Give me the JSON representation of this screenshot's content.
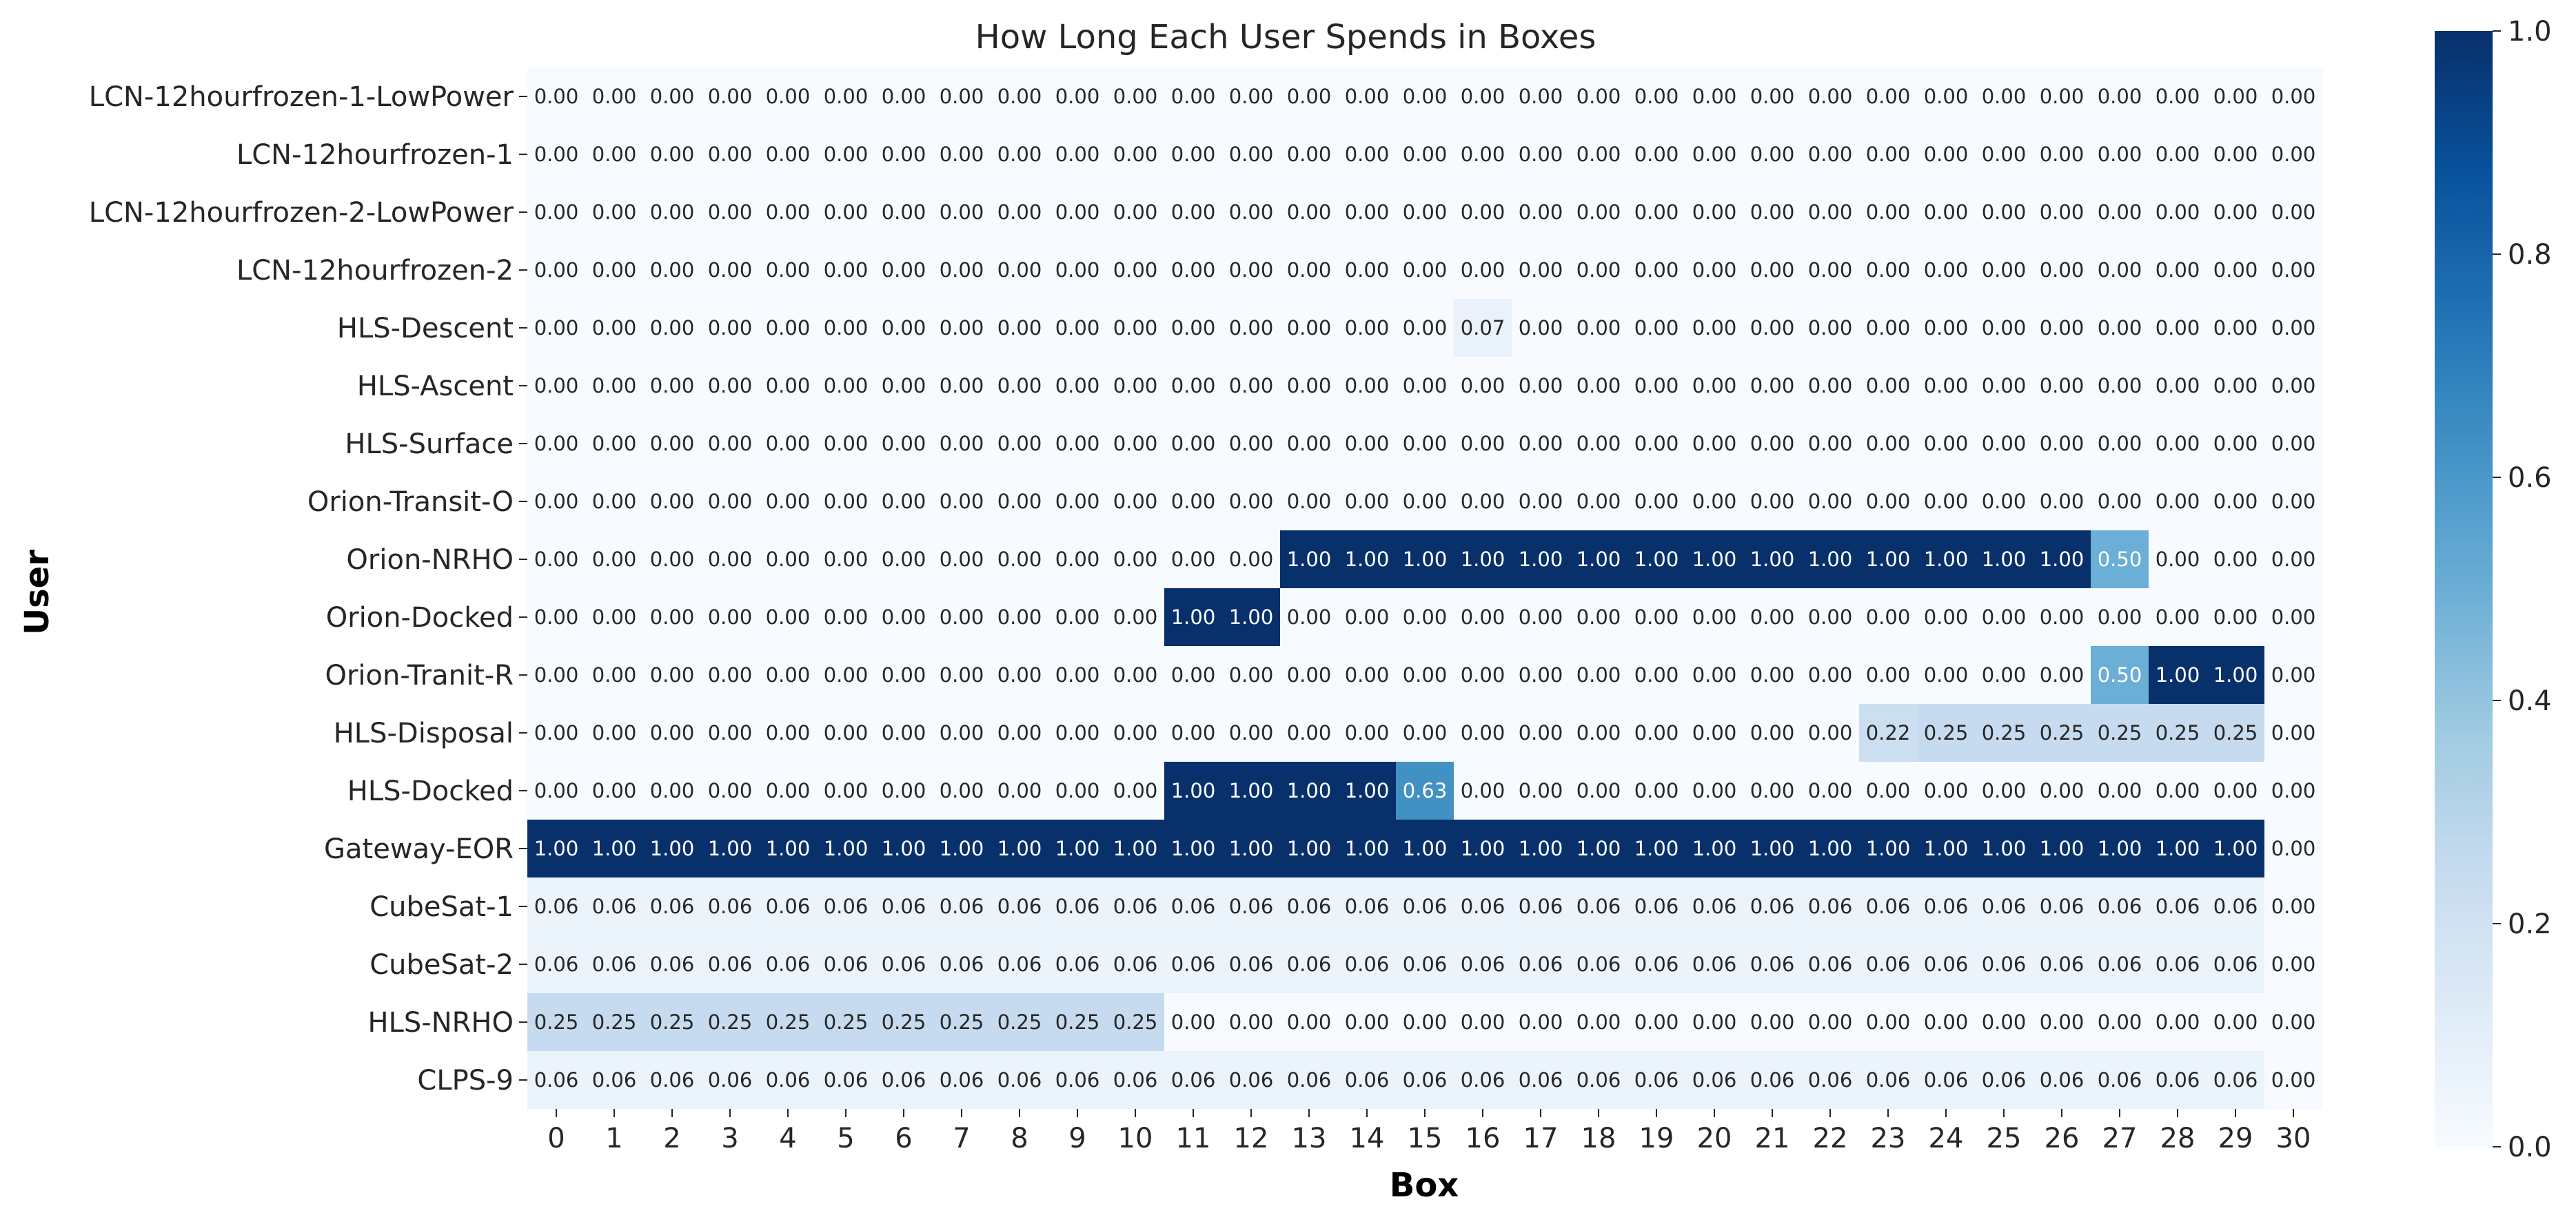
{
  "chart_data": {
    "type": "heatmap",
    "title": "How Long Each User Spends in Boxes",
    "xlabel": "Box",
    "ylabel": "User",
    "x": [
      0,
      1,
      2,
      3,
      4,
      5,
      6,
      7,
      8,
      9,
      10,
      11,
      12,
      13,
      14,
      15,
      16,
      17,
      18,
      19,
      20,
      21,
      22,
      23,
      24,
      25,
      26,
      27,
      28,
      29,
      30
    ],
    "y": [
      "LCN-12hourfrozen-1-LowPower",
      "LCN-12hourfrozen-1",
      "LCN-12hourfrozen-2-LowPower",
      "LCN-12hourfrozen-2",
      "HLS-Descent",
      "HLS-Ascent",
      "HLS-Surface",
      "Orion-Transit-O",
      "Orion-NRHO",
      "Orion-Docked",
      "Orion-Tranit-R",
      "HLS-Disposal",
      "HLS-Docked",
      "Gateway-EOR",
      "CubeSat-1",
      "CubeSat-2",
      "HLS-NRHO",
      "CLPS-9"
    ],
    "values": [
      [
        0,
        0,
        0,
        0,
        0,
        0,
        0,
        0,
        0,
        0,
        0,
        0,
        0,
        0,
        0,
        0,
        0,
        0,
        0,
        0,
        0,
        0,
        0,
        0,
        0,
        0,
        0,
        0,
        0,
        0,
        0
      ],
      [
        0,
        0,
        0,
        0,
        0,
        0,
        0,
        0,
        0,
        0,
        0,
        0,
        0,
        0,
        0,
        0,
        0,
        0,
        0,
        0,
        0,
        0,
        0,
        0,
        0,
        0,
        0,
        0,
        0,
        0,
        0
      ],
      [
        0,
        0,
        0,
        0,
        0,
        0,
        0,
        0,
        0,
        0,
        0,
        0,
        0,
        0,
        0,
        0,
        0,
        0,
        0,
        0,
        0,
        0,
        0,
        0,
        0,
        0,
        0,
        0,
        0,
        0,
        0
      ],
      [
        0,
        0,
        0,
        0,
        0,
        0,
        0,
        0,
        0,
        0,
        0,
        0,
        0,
        0,
        0,
        0,
        0,
        0,
        0,
        0,
        0,
        0,
        0,
        0,
        0,
        0,
        0,
        0,
        0,
        0,
        0
      ],
      [
        0,
        0,
        0,
        0,
        0,
        0,
        0,
        0,
        0,
        0,
        0,
        0,
        0,
        0,
        0,
        0,
        0.07,
        0,
        0,
        0,
        0,
        0,
        0,
        0,
        0,
        0,
        0,
        0,
        0,
        0,
        0
      ],
      [
        0,
        0,
        0,
        0,
        0,
        0,
        0,
        0,
        0,
        0,
        0,
        0,
        0,
        0,
        0,
        0,
        0,
        0,
        0,
        0,
        0,
        0,
        0,
        0,
        0,
        0,
        0,
        0,
        0,
        0,
        0
      ],
      [
        0,
        0,
        0,
        0,
        0,
        0,
        0,
        0,
        0,
        0,
        0,
        0,
        0,
        0,
        0,
        0,
        0,
        0,
        0,
        0,
        0,
        0,
        0,
        0,
        0,
        0,
        0,
        0,
        0,
        0,
        0
      ],
      [
        0,
        0,
        0,
        0,
        0,
        0,
        0,
        0,
        0,
        0,
        0,
        0,
        0,
        0,
        0,
        0,
        0,
        0,
        0,
        0,
        0,
        0,
        0,
        0,
        0,
        0,
        0,
        0,
        0,
        0,
        0
      ],
      [
        0,
        0,
        0,
        0,
        0,
        0,
        0,
        0,
        0,
        0,
        0,
        0,
        0,
        1,
        1,
        1,
        1,
        1,
        1,
        1,
        1,
        1,
        1,
        1,
        1,
        1,
        1,
        0.5,
        0,
        0,
        0
      ],
      [
        0,
        0,
        0,
        0,
        0,
        0,
        0,
        0,
        0,
        0,
        0,
        1,
        1,
        0,
        0,
        0,
        0,
        0,
        0,
        0,
        0,
        0,
        0,
        0,
        0,
        0,
        0,
        0,
        0,
        0,
        0
      ],
      [
        0,
        0,
        0,
        0,
        0,
        0,
        0,
        0,
        0,
        0,
        0,
        0,
        0,
        0,
        0,
        0,
        0,
        0,
        0,
        0,
        0,
        0,
        0,
        0,
        0,
        0,
        0,
        0.5,
        1,
        1,
        0
      ],
      [
        0,
        0,
        0,
        0,
        0,
        0,
        0,
        0,
        0,
        0,
        0,
        0,
        0,
        0,
        0,
        0,
        0,
        0,
        0,
        0,
        0,
        0,
        0,
        0.22,
        0.25,
        0.25,
        0.25,
        0.25,
        0.25,
        0.25,
        0
      ],
      [
        0,
        0,
        0,
        0,
        0,
        0,
        0,
        0,
        0,
        0,
        0,
        1,
        1,
        1,
        1,
        0.63,
        0,
        0,
        0,
        0,
        0,
        0,
        0,
        0,
        0,
        0,
        0,
        0,
        0,
        0,
        0
      ],
      [
        1,
        1,
        1,
        1,
        1,
        1,
        1,
        1,
        1,
        1,
        1,
        1,
        1,
        1,
        1,
        1,
        1,
        1,
        1,
        1,
        1,
        1,
        1,
        1,
        1,
        1,
        1,
        1,
        1,
        1,
        0
      ],
      [
        0.06,
        0.06,
        0.06,
        0.06,
        0.06,
        0.06,
        0.06,
        0.06,
        0.06,
        0.06,
        0.06,
        0.06,
        0.06,
        0.06,
        0.06,
        0.06,
        0.06,
        0.06,
        0.06,
        0.06,
        0.06,
        0.06,
        0.06,
        0.06,
        0.06,
        0.06,
        0.06,
        0.06,
        0.06,
        0.06,
        0
      ],
      [
        0.06,
        0.06,
        0.06,
        0.06,
        0.06,
        0.06,
        0.06,
        0.06,
        0.06,
        0.06,
        0.06,
        0.06,
        0.06,
        0.06,
        0.06,
        0.06,
        0.06,
        0.06,
        0.06,
        0.06,
        0.06,
        0.06,
        0.06,
        0.06,
        0.06,
        0.06,
        0.06,
        0.06,
        0.06,
        0.06,
        0
      ],
      [
        0.25,
        0.25,
        0.25,
        0.25,
        0.25,
        0.25,
        0.25,
        0.25,
        0.25,
        0.25,
        0.25,
        0,
        0,
        0,
        0,
        0,
        0,
        0,
        0,
        0,
        0,
        0,
        0,
        0,
        0,
        0,
        0,
        0,
        0,
        0,
        0
      ],
      [
        0.06,
        0.06,
        0.06,
        0.06,
        0.06,
        0.06,
        0.06,
        0.06,
        0.06,
        0.06,
        0.06,
        0.06,
        0.06,
        0.06,
        0.06,
        0.06,
        0.06,
        0.06,
        0.06,
        0.06,
        0.06,
        0.06,
        0.06,
        0.06,
        0.06,
        0.06,
        0.06,
        0.06,
        0.06,
        0.06,
        0
      ]
    ],
    "value_format_decimals": 2,
    "colormap": "Blues",
    "colormap_stops": [
      "#f7fbff",
      "#deebf7",
      "#c6dbef",
      "#9ecae1",
      "#6baed6",
      "#4292c6",
      "#2171b5",
      "#08519c",
      "#08306b"
    ],
    "vmin": 0,
    "vmax": 1,
    "colorbar_ticks": [
      "0.0",
      "0.2",
      "0.4",
      "0.6",
      "0.8",
      "1.0"
    ],
    "grid": false,
    "legend": "colorbar-right"
  }
}
